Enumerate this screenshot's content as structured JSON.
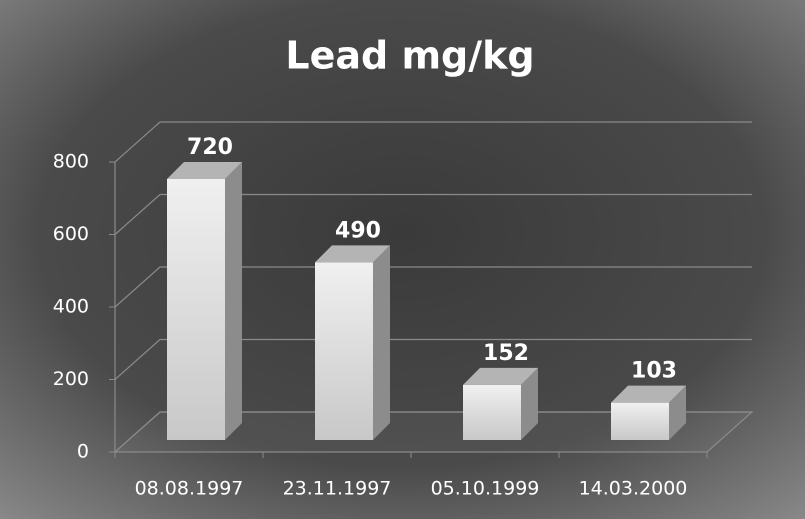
{
  "chart_data": {
    "type": "bar",
    "title": "Lead mg/kg",
    "categories": [
      "08.08.1997",
      "23.11.1997",
      "05.10.1999",
      "14.03.2000"
    ],
    "values": [
      720,
      490,
      152,
      103
    ],
    "color": "#dcdcdc",
    "ylim": [
      0,
      800
    ],
    "yticks": [
      0,
      200,
      400,
      600,
      800
    ],
    "grid": true
  }
}
